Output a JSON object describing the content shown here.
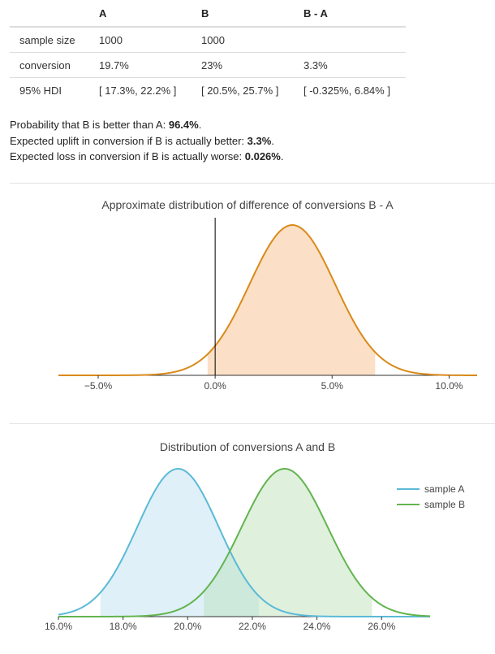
{
  "table": {
    "headers": [
      "",
      "A",
      "B",
      "B - A"
    ],
    "rows": [
      [
        "sample size",
        "1000",
        "1000",
        ""
      ],
      [
        "conversion",
        "19.7%",
        "23%",
        "3.3%"
      ],
      [
        "95% HDI",
        "[ 17.3%, 22.2% ]",
        "[ 20.5%, 25.7% ]",
        "[ -0.325%, 6.84% ]"
      ]
    ]
  },
  "summary": {
    "prob_prefix": "Probability that B is better than A: ",
    "prob_value": "96.4%",
    "uplift_prefix": "Expected uplift in conversion if B is actually better: ",
    "uplift_value": "3.3%",
    "loss_prefix": "Expected loss in conversion if B is actually worse: ",
    "loss_value": "0.026%",
    "suffix": "."
  },
  "chart_data": [
    {
      "type": "area",
      "title": "Approximate distribution of difference of conversions B - A",
      "distribution": "normal",
      "mean": 3.3,
      "sd": 1.83,
      "xlim": [
        -6.7,
        11.2
      ],
      "hdi": [
        -0.325,
        6.84
      ],
      "vline_x": 0,
      "xticks": [
        -5,
        0,
        5,
        10
      ],
      "xtick_labels": [
        "−5.0%",
        "0.0%",
        "5.0%",
        "10.0%"
      ],
      "colors": {
        "line": "#d98a1a",
        "fill": "#fbdfc6",
        "vline": "#000000"
      }
    },
    {
      "type": "area",
      "title": "Distribution of conversions A and B",
      "xlim": [
        16.0,
        27.5
      ],
      "xticks": [
        16,
        18,
        20,
        22,
        24,
        26
      ],
      "xtick_labels": [
        "16.0%",
        "18.0%",
        "20.0%",
        "22.0%",
        "24.0%",
        "26.0%"
      ],
      "legend_position": "top-right",
      "series": [
        {
          "name": "sample A",
          "mean": 19.7,
          "sd": 1.26,
          "hdi": [
            17.3,
            22.2
          ],
          "line": "#5bbad7",
          "fill": "#dff0f8"
        },
        {
          "name": "sample B",
          "mean": 23.0,
          "sd": 1.33,
          "hdi": [
            20.5,
            25.7
          ],
          "line": "#63b44f",
          "fill": "#dff0dd"
        }
      ],
      "overlap_fill": "#cce9dc"
    }
  ]
}
